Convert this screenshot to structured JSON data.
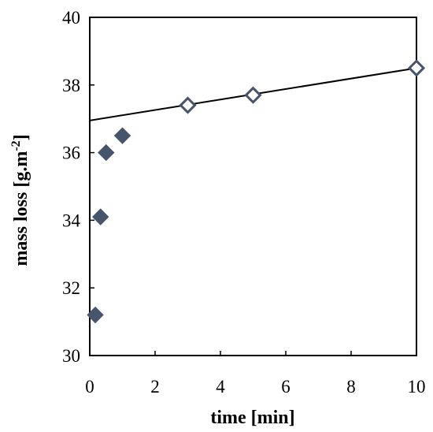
{
  "chart_data": {
    "type": "scatter",
    "title": "",
    "xlabel": "time [min]",
    "ylabel_main": "mass loss [g.m",
    "ylabel_sup": "-2",
    "ylabel_end": "]",
    "xlim": [
      0,
      10
    ],
    "ylim": [
      30,
      40
    ],
    "xticks": [
      "0",
      "2",
      "4",
      "6",
      "8",
      "10"
    ],
    "yticks": [
      "30",
      "32",
      "34",
      "36",
      "38",
      "40"
    ],
    "grid": false,
    "legend": false,
    "marker_color": "#46556c",
    "line_color": "#000000",
    "series": [
      {
        "marker": "filled-diamond",
        "x": [
          0.17,
          0.33,
          0.5,
          1.0
        ],
        "y": [
          31.2,
          34.1,
          36.0,
          36.5
        ]
      },
      {
        "marker": "open-diamond",
        "x": [
          3,
          5,
          10
        ],
        "y": [
          37.4,
          37.7,
          38.5
        ]
      }
    ],
    "trendline": {
      "x": [
        0,
        10
      ],
      "y": [
        36.95,
        38.5
      ]
    }
  }
}
